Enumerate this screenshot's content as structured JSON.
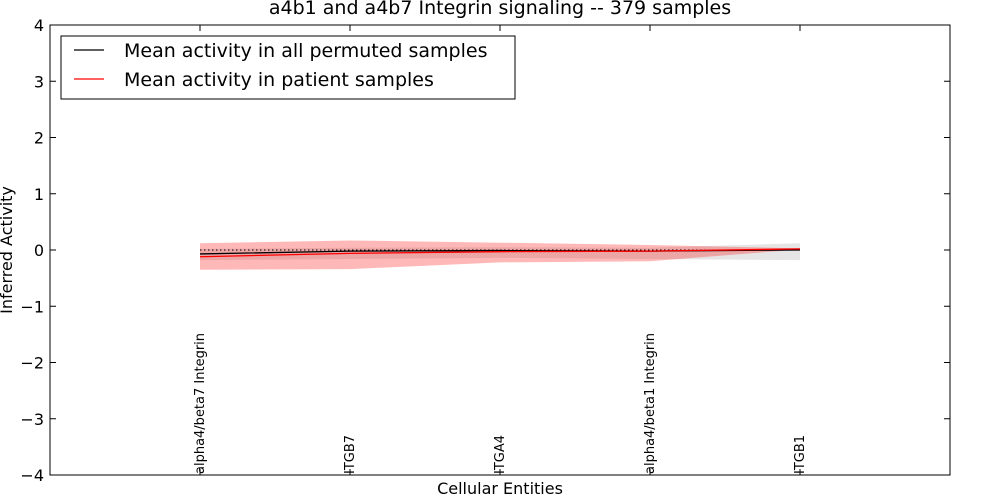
{
  "chart_data": {
    "type": "line",
    "title": "a4b1 and a4b7 Integrin signaling -- 379 samples",
    "xlabel": "Cellular Entities",
    "ylabel": "Inferred Activity",
    "ylim": [
      -4,
      4
    ],
    "yticks": [
      "−4",
      "−3",
      "−2",
      "−1",
      "0",
      "1",
      "2",
      "3",
      "4"
    ],
    "ytick_values": [
      -4,
      -3,
      -2,
      -1,
      0,
      1,
      2,
      3,
      4
    ],
    "grid": false,
    "legend_position": "top-left",
    "categories": [
      "alpha4/beta7 Integrin",
      "ITGB7",
      "ITGA4",
      "alpha4/beta1 Integrin",
      "ITGB1"
    ],
    "series": [
      {
        "name": "Mean activity in all permuted samples",
        "color": "#000000",
        "values": [
          -0.07,
          -0.02,
          -0.01,
          -0.02,
          0.0
        ],
        "band_low": [
          -0.18,
          -0.16,
          -0.14,
          -0.16,
          -0.18
        ],
        "band_high": [
          0.02,
          0.04,
          0.05,
          0.04,
          0.12
        ]
      },
      {
        "name": "Mean activity in patient samples",
        "color": "#ff0000",
        "values": [
          -0.12,
          -0.06,
          -0.03,
          -0.02,
          0.02
        ],
        "band_low": [
          -0.35,
          -0.34,
          -0.22,
          -0.2,
          0.01
        ],
        "band_high": [
          0.12,
          0.17,
          0.13,
          0.09,
          0.03
        ]
      }
    ],
    "zero_line": 0
  }
}
